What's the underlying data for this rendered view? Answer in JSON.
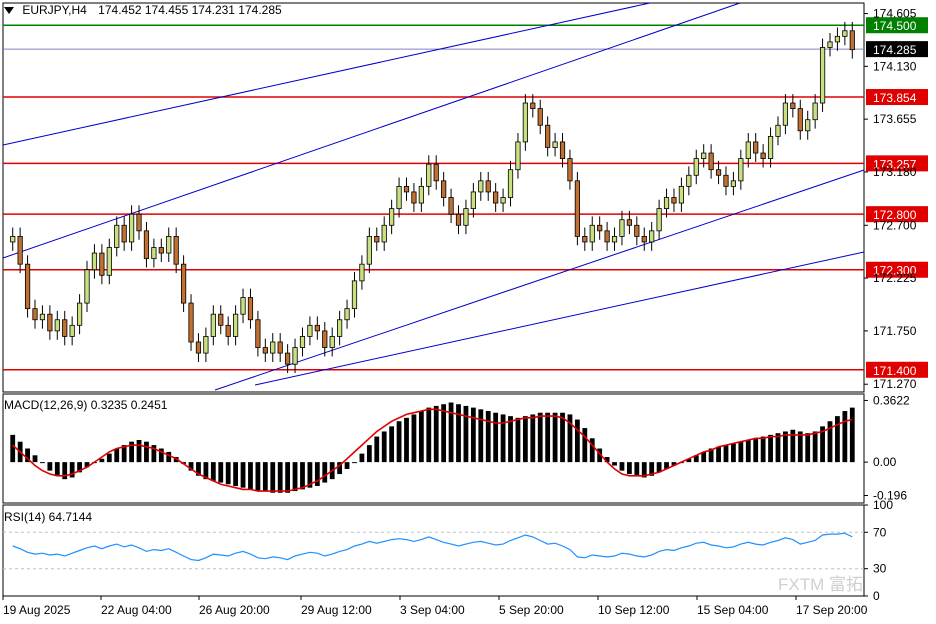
{
  "header": {
    "symbol": "EURJPY,H4",
    "ohlc": "174.452 174.455 174.231 174.285"
  },
  "macd_label": "MACD(12,26,9) 0.3235 0.2451",
  "rsi_label": "RSI(14) 64.7144",
  "watermark": "FXTM 富拓",
  "colors": {
    "level_line": "#e00000",
    "trend_line": "#0000cc",
    "resistance_line": "#008000",
    "bid_line": "#8080c0",
    "candle_up": "#c8e080",
    "candle_down": "#c07030",
    "macd_signal": "#e00000",
    "rsi_line": "#1e90ff"
  },
  "chart_data": [
    {
      "type": "candlestick",
      "symbol": "EURJPY",
      "timeframe": "H4",
      "ylim": [
        171.2,
        174.7
      ],
      "y_ticks": [
        174.605,
        174.13,
        173.655,
        173.18,
        172.7,
        172.225,
        171.75,
        171.27
      ],
      "x_tick_labels": [
        "19 Aug 2025",
        "22 Aug 04:00",
        "26 Aug 20:00",
        "29 Aug 12:00",
        "3 Sep 04:00",
        "5 Sep 20:00",
        "10 Sep 12:00",
        "15 Sep 04:00",
        "17 Sep 20:00"
      ],
      "levels": [
        {
          "value": 174.5,
          "label": "174.500",
          "kind": "resistance"
        },
        {
          "value": 173.854,
          "label": "173.854",
          "kind": "level"
        },
        {
          "value": 173.257,
          "label": "173.257",
          "kind": "level"
        },
        {
          "value": 172.8,
          "label": "172.800",
          "kind": "level"
        },
        {
          "value": 172.3,
          "label": "172.300",
          "kind": "level"
        },
        {
          "value": 171.4,
          "label": "171.400",
          "kind": "level"
        }
      ],
      "current_price": {
        "value": 174.285,
        "label": "174.285"
      },
      "close": [
        172.6,
        172.35,
        171.95,
        171.85,
        171.9,
        171.75,
        171.85,
        171.7,
        171.8,
        172.0,
        172.3,
        172.45,
        172.25,
        172.5,
        172.7,
        172.55,
        172.8,
        172.65,
        172.4,
        172.5,
        172.45,
        172.6,
        172.35,
        172.0,
        171.65,
        171.55,
        171.7,
        171.9,
        171.8,
        171.7,
        171.9,
        172.05,
        171.85,
        171.6,
        171.55,
        171.65,
        171.55,
        171.45,
        171.6,
        171.7,
        171.8,
        171.75,
        171.6,
        171.7,
        171.85,
        171.95,
        172.2,
        172.35,
        172.6,
        172.55,
        172.7,
        172.85,
        173.05,
        173.0,
        172.9,
        173.05,
        173.25,
        173.1,
        172.95,
        172.8,
        172.7,
        172.85,
        173.0,
        173.1,
        173.0,
        172.9,
        172.95,
        173.2,
        173.45,
        173.8,
        173.75,
        173.6,
        173.4,
        173.45,
        173.3,
        173.1,
        172.6,
        172.55,
        172.7,
        172.65,
        172.55,
        172.6,
        172.75,
        172.7,
        172.6,
        172.55,
        172.65,
        172.85,
        172.95,
        172.9,
        173.05,
        173.15,
        173.3,
        173.35,
        173.2,
        173.15,
        173.05,
        173.1,
        173.3,
        173.45,
        173.35,
        173.3,
        173.5,
        173.6,
        173.8,
        173.75,
        173.55,
        173.65,
        173.8,
        174.3,
        174.35,
        174.4,
        174.45,
        174.28
      ],
      "macd_histogram": [
        0.16,
        0.12,
        0.08,
        0.04,
        0.0,
        -0.05,
        -0.08,
        -0.1,
        -0.09,
        -0.06,
        -0.03,
        0.0,
        0.02,
        0.05,
        0.08,
        0.1,
        0.12,
        0.13,
        0.12,
        0.1,
        0.08,
        0.06,
        0.03,
        -0.01,
        -0.05,
        -0.08,
        -0.1,
        -0.11,
        -0.12,
        -0.13,
        -0.14,
        -0.15,
        -0.16,
        -0.17,
        -0.17,
        -0.18,
        -0.18,
        -0.18,
        -0.17,
        -0.16,
        -0.15,
        -0.14,
        -0.12,
        -0.1,
        -0.07,
        -0.04,
        0.0,
        0.05,
        0.1,
        0.15,
        0.18,
        0.21,
        0.24,
        0.26,
        0.28,
        0.3,
        0.32,
        0.33,
        0.34,
        0.35,
        0.34,
        0.33,
        0.32,
        0.31,
        0.3,
        0.29,
        0.28,
        0.27,
        0.26,
        0.27,
        0.28,
        0.29,
        0.29,
        0.29,
        0.29,
        0.28,
        0.25,
        0.2,
        0.14,
        0.08,
        0.03,
        -0.02,
        -0.05,
        -0.07,
        -0.08,
        -0.09,
        -0.08,
        -0.06,
        -0.04,
        -0.02,
        0.0,
        0.02,
        0.04,
        0.06,
        0.08,
        0.09,
        0.1,
        0.11,
        0.12,
        0.13,
        0.14,
        0.15,
        0.16,
        0.17,
        0.18,
        0.19,
        0.18,
        0.17,
        0.18,
        0.21,
        0.24,
        0.27,
        0.3,
        0.32
      ],
      "macd_signal": [
        0.1,
        0.06,
        0.02,
        -0.02,
        -0.05,
        -0.07,
        -0.08,
        -0.08,
        -0.07,
        -0.05,
        -0.03,
        0.0,
        0.03,
        0.06,
        0.08,
        0.09,
        0.1,
        0.1,
        0.09,
        0.08,
        0.06,
        0.04,
        0.02,
        -0.01,
        -0.04,
        -0.07,
        -0.09,
        -0.11,
        -0.13,
        -0.14,
        -0.15,
        -0.16,
        -0.16,
        -0.17,
        -0.17,
        -0.17,
        -0.17,
        -0.17,
        -0.16,
        -0.15,
        -0.13,
        -0.11,
        -0.08,
        -0.05,
        -0.02,
        0.02,
        0.06,
        0.1,
        0.14,
        0.18,
        0.21,
        0.24,
        0.26,
        0.28,
        0.29,
        0.3,
        0.31,
        0.31,
        0.3,
        0.29,
        0.28,
        0.27,
        0.26,
        0.25,
        0.24,
        0.23,
        0.23,
        0.24,
        0.25,
        0.26,
        0.26,
        0.27,
        0.27,
        0.27,
        0.26,
        0.23,
        0.19,
        0.15,
        0.1,
        0.05,
        0.0,
        -0.04,
        -0.07,
        -0.08,
        -0.08,
        -0.08,
        -0.07,
        -0.06,
        -0.04,
        -0.02,
        0.0,
        0.02,
        0.04,
        0.06,
        0.07,
        0.09,
        0.1,
        0.11,
        0.12,
        0.13,
        0.14,
        0.14,
        0.15,
        0.15,
        0.16,
        0.16,
        0.16,
        0.16,
        0.17,
        0.18,
        0.2,
        0.22,
        0.24,
        0.25
      ],
      "macd_axis": {
        "ylim": [
          -0.24,
          0.4
        ],
        "ticks": [
          "0.3622",
          "0.00",
          "-0.196"
        ]
      },
      "rsi": [
        55,
        52,
        48,
        46,
        47,
        45,
        46,
        44,
        47,
        50,
        53,
        55,
        52,
        55,
        57,
        54,
        56,
        53,
        49,
        51,
        50,
        52,
        48,
        44,
        40,
        39,
        42,
        46,
        45,
        44,
        47,
        49,
        46,
        42,
        41,
        43,
        42,
        40,
        44,
        46,
        48,
        47,
        44,
        46,
        49,
        51,
        55,
        57,
        60,
        58,
        60,
        62,
        63,
        62,
        60,
        62,
        65,
        62,
        59,
        57,
        55,
        57,
        59,
        60,
        58,
        56,
        57,
        61,
        64,
        67,
        65,
        61,
        57,
        58,
        55,
        51,
        43,
        42,
        45,
        44,
        43,
        44,
        47,
        46,
        44,
        43,
        45,
        49,
        51,
        50,
        53,
        55,
        58,
        59,
        56,
        55,
        53,
        54,
        57,
        59,
        57,
        56,
        59,
        61,
        64,
        62,
        57,
        59,
        61,
        67,
        68,
        68,
        69,
        65
      ],
      "rsi_axis": {
        "ylim": [
          0,
          100
        ],
        "ticks": [
          "100",
          "70",
          "30",
          "0"
        ],
        "guides": [
          70,
          30
        ]
      }
    }
  ]
}
